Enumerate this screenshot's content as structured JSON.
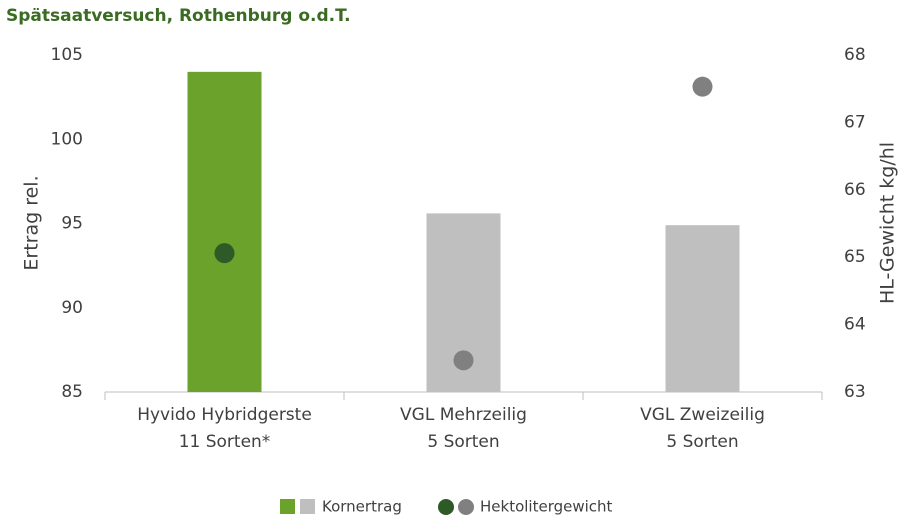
{
  "chart_data": {
    "type": "bar",
    "title": "Spätsaatversuch, Rothenburg o.d.T.",
    "y_label": "Ertrag rel.",
    "y2_label": "HL-Gewicht  kg/hl",
    "categories": [
      [
        "Hyvido Hybridgerste",
        "11 Sorten*"
      ],
      [
        "VGL Mehrzeilig",
        "5 Sorten"
      ],
      [
        "VGL Zweizeilig",
        "5 Sorten"
      ]
    ],
    "ylim": [
      85,
      105
    ],
    "yticks": [
      85,
      90,
      95,
      100,
      105
    ],
    "y2lim": [
      63,
      68
    ],
    "y2ticks": [
      63,
      64,
      65,
      66,
      67,
      68
    ],
    "grid": false,
    "legend": "bottom",
    "series": [
      {
        "name": "Kornertrag",
        "type": "bar",
        "colors": [
          "#6aa22b",
          "#bfbfbf",
          "#bfbfbf"
        ],
        "values": [
          104.0,
          95.6,
          94.9
        ]
      },
      {
        "name": "Hektolitergewicht",
        "type": "scatter",
        "axis": "y2",
        "colors": [
          "#2e5a27",
          "#808080",
          "#808080"
        ],
        "values": [
          65.06,
          63.47,
          67.53
        ]
      }
    ]
  }
}
